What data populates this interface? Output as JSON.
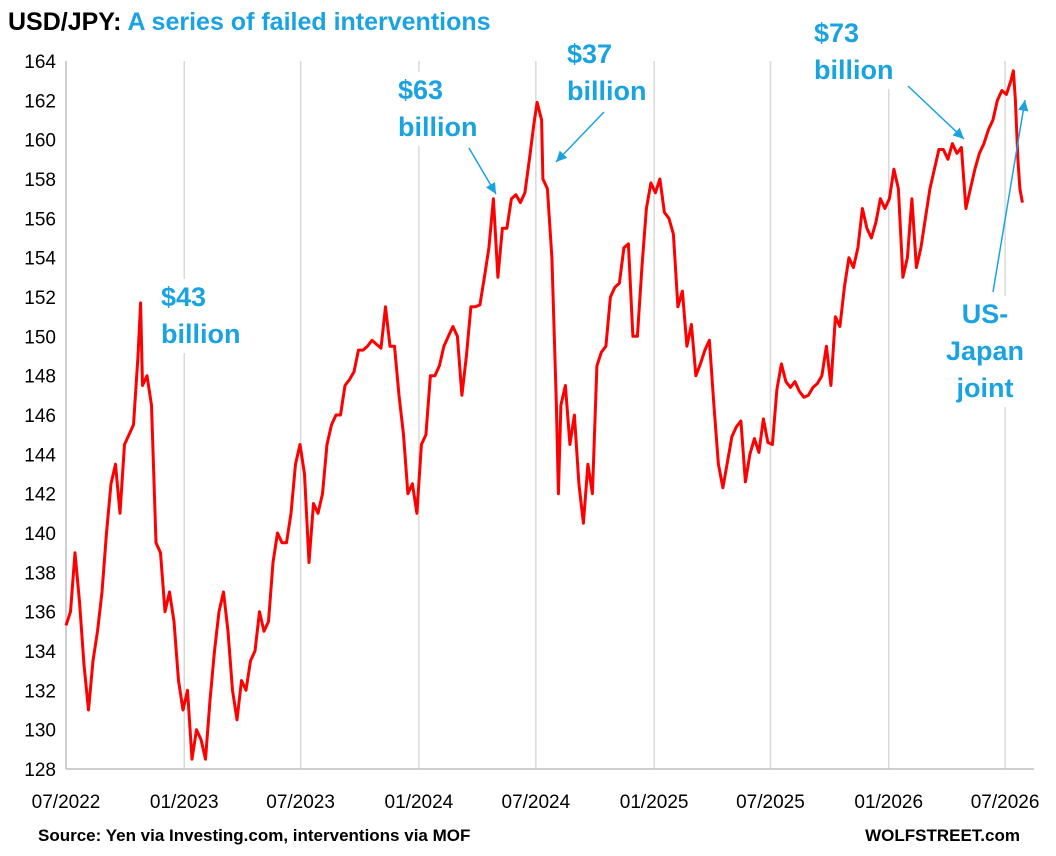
{
  "title": {
    "pair": "USD/JPY:",
    "subtitle": "A series of failed interventions"
  },
  "source": "Source: Yen via Investing.com, interventions via MOF",
  "brand": "WOLFSTREET.com",
  "colors": {
    "line": "#ff0000",
    "annotation": "#1aa3e0",
    "grid": "#d9d9d9"
  },
  "chart_data": {
    "type": "line",
    "ylim": [
      128,
      164
    ],
    "yticks": [
      128,
      130,
      132,
      134,
      136,
      138,
      140,
      142,
      144,
      146,
      148,
      150,
      152,
      154,
      156,
      158,
      160,
      162,
      164
    ],
    "xlim": [
      "2022-07-01",
      "2026-08-15"
    ],
    "xticks": [
      {
        "date": "2022-07-01",
        "label": "07/2022"
      },
      {
        "date": "2023-01-01",
        "label": "01/2023"
      },
      {
        "date": "2023-07-01",
        "label": "07/2023"
      },
      {
        "date": "2024-01-01",
        "label": "01/2024"
      },
      {
        "date": "2024-07-01",
        "label": "07/2024"
      },
      {
        "date": "2025-01-01",
        "label": "01/2025"
      },
      {
        "date": "2025-07-01",
        "label": "07/2025"
      },
      {
        "date": "2026-01-01",
        "label": "01/2026"
      },
      {
        "date": "2026-07-01",
        "label": "07/2026"
      }
    ],
    "grid": "vertical",
    "series": [
      {
        "color": "#ff0000",
        "points": [
          [
            "2022-07-01",
            135.3
          ],
          [
            "2022-07-08",
            136.0
          ],
          [
            "2022-07-15",
            139.0
          ],
          [
            "2022-07-22",
            136.5
          ],
          [
            "2022-07-29",
            133.3
          ],
          [
            "2022-08-05",
            131.0
          ],
          [
            "2022-08-12",
            133.5
          ],
          [
            "2022-08-19",
            135.0
          ],
          [
            "2022-08-26",
            137.0
          ],
          [
            "2022-09-02",
            140.0
          ],
          [
            "2022-09-09",
            142.5
          ],
          [
            "2022-09-16",
            143.5
          ],
          [
            "2022-09-23",
            141.0
          ],
          [
            "2022-09-30",
            144.5
          ],
          [
            "2022-10-07",
            145.0
          ],
          [
            "2022-10-14",
            145.5
          ],
          [
            "2022-10-21",
            149.0
          ],
          [
            "2022-10-25",
            151.7
          ],
          [
            "2022-10-28",
            147.5
          ],
          [
            "2022-11-04",
            148.0
          ],
          [
            "2022-11-11",
            146.5
          ],
          [
            "2022-11-18",
            139.5
          ],
          [
            "2022-11-25",
            139.0
          ],
          [
            "2022-12-02",
            136.0
          ],
          [
            "2022-12-09",
            137.0
          ],
          [
            "2022-12-16",
            135.5
          ],
          [
            "2022-12-23",
            132.5
          ],
          [
            "2022-12-30",
            131.0
          ],
          [
            "2023-01-06",
            132.0
          ],
          [
            "2023-01-13",
            128.5
          ],
          [
            "2023-01-20",
            130.0
          ],
          [
            "2023-01-27",
            129.5
          ],
          [
            "2023-02-03",
            128.5
          ],
          [
            "2023-02-10",
            131.5
          ],
          [
            "2023-02-17",
            134.0
          ],
          [
            "2023-02-24",
            136.0
          ],
          [
            "2023-03-03",
            137.0
          ],
          [
            "2023-03-10",
            135.0
          ],
          [
            "2023-03-17",
            132.0
          ],
          [
            "2023-03-24",
            130.5
          ],
          [
            "2023-03-31",
            132.5
          ],
          [
            "2023-04-07",
            132.0
          ],
          [
            "2023-04-14",
            133.5
          ],
          [
            "2023-04-21",
            134.0
          ],
          [
            "2023-04-28",
            136.0
          ],
          [
            "2023-05-05",
            135.0
          ],
          [
            "2023-05-12",
            135.5
          ],
          [
            "2023-05-19",
            138.5
          ],
          [
            "2023-05-26",
            140.0
          ],
          [
            "2023-06-02",
            139.5
          ],
          [
            "2023-06-09",
            139.5
          ],
          [
            "2023-06-16",
            141.0
          ],
          [
            "2023-06-23",
            143.5
          ],
          [
            "2023-06-30",
            144.5
          ],
          [
            "2023-07-07",
            143.0
          ],
          [
            "2023-07-14",
            138.5
          ],
          [
            "2023-07-21",
            141.5
          ],
          [
            "2023-07-28",
            141.0
          ],
          [
            "2023-08-04",
            142.0
          ],
          [
            "2023-08-11",
            144.5
          ],
          [
            "2023-08-18",
            145.5
          ],
          [
            "2023-08-25",
            146.0
          ],
          [
            "2023-09-01",
            146.0
          ],
          [
            "2023-09-08",
            147.5
          ],
          [
            "2023-09-15",
            147.8
          ],
          [
            "2023-09-22",
            148.2
          ],
          [
            "2023-09-29",
            149.3
          ],
          [
            "2023-10-06",
            149.3
          ],
          [
            "2023-10-13",
            149.5
          ],
          [
            "2023-10-20",
            149.8
          ],
          [
            "2023-10-27",
            149.6
          ],
          [
            "2023-11-03",
            149.4
          ],
          [
            "2023-11-10",
            151.5
          ],
          [
            "2023-11-17",
            149.5
          ],
          [
            "2023-11-24",
            149.5
          ],
          [
            "2023-12-01",
            147.0
          ],
          [
            "2023-12-08",
            145.0
          ],
          [
            "2023-12-15",
            142.0
          ],
          [
            "2023-12-22",
            142.5
          ],
          [
            "2023-12-29",
            141.0
          ],
          [
            "2024-01-05",
            144.5
          ],
          [
            "2024-01-12",
            145.0
          ],
          [
            "2024-01-19",
            148.0
          ],
          [
            "2024-01-26",
            148.0
          ],
          [
            "2024-02-02",
            148.5
          ],
          [
            "2024-02-09",
            149.5
          ],
          [
            "2024-02-16",
            150.0
          ],
          [
            "2024-02-23",
            150.5
          ],
          [
            "2024-03-01",
            150.0
          ],
          [
            "2024-03-08",
            147.0
          ],
          [
            "2024-03-15",
            149.0
          ],
          [
            "2024-03-22",
            151.5
          ],
          [
            "2024-03-29",
            151.5
          ],
          [
            "2024-04-05",
            151.6
          ],
          [
            "2024-04-12",
            153.0
          ],
          [
            "2024-04-19",
            154.5
          ],
          [
            "2024-04-26",
            157.0
          ],
          [
            "2024-05-03",
            153.0
          ],
          [
            "2024-05-10",
            155.5
          ],
          [
            "2024-05-17",
            155.5
          ],
          [
            "2024-05-24",
            157.0
          ],
          [
            "2024-05-31",
            157.2
          ],
          [
            "2024-06-07",
            156.8
          ],
          [
            "2024-06-14",
            157.3
          ],
          [
            "2024-06-21",
            159.0
          ],
          [
            "2024-06-28",
            160.8
          ],
          [
            "2024-07-03",
            161.9
          ],
          [
            "2024-07-10",
            161.0
          ],
          [
            "2024-07-12",
            158.0
          ],
          [
            "2024-07-19",
            157.5
          ],
          [
            "2024-07-26",
            154.0
          ],
          [
            "2024-08-02",
            146.5
          ],
          [
            "2024-08-05",
            142.0
          ],
          [
            "2024-08-09",
            146.5
          ],
          [
            "2024-08-16",
            147.5
          ],
          [
            "2024-08-23",
            144.5
          ],
          [
            "2024-08-30",
            146.0
          ],
          [
            "2024-09-06",
            142.5
          ],
          [
            "2024-09-13",
            140.5
          ],
          [
            "2024-09-20",
            143.5
          ],
          [
            "2024-09-27",
            142.0
          ],
          [
            "2024-10-04",
            148.5
          ],
          [
            "2024-10-11",
            149.2
          ],
          [
            "2024-10-18",
            149.5
          ],
          [
            "2024-10-25",
            152.0
          ],
          [
            "2024-11-01",
            152.5
          ],
          [
            "2024-11-08",
            152.7
          ],
          [
            "2024-11-15",
            154.5
          ],
          [
            "2024-11-22",
            154.7
          ],
          [
            "2024-11-29",
            150.0
          ],
          [
            "2024-12-06",
            150.0
          ],
          [
            "2024-12-13",
            153.5
          ],
          [
            "2024-12-20",
            156.5
          ],
          [
            "2024-12-27",
            157.8
          ],
          [
            "2025-01-03",
            157.3
          ],
          [
            "2025-01-10",
            158.0
          ],
          [
            "2025-01-17",
            156.3
          ],
          [
            "2025-01-24",
            156.0
          ],
          [
            "2025-01-31",
            155.2
          ],
          [
            "2025-02-07",
            151.5
          ],
          [
            "2025-02-14",
            152.3
          ],
          [
            "2025-02-21",
            149.5
          ],
          [
            "2025-02-28",
            150.6
          ],
          [
            "2025-03-07",
            148.0
          ],
          [
            "2025-03-14",
            148.6
          ],
          [
            "2025-03-21",
            149.3
          ],
          [
            "2025-03-28",
            149.8
          ],
          [
            "2025-04-04",
            146.5
          ],
          [
            "2025-04-11",
            143.5
          ],
          [
            "2025-04-18",
            142.3
          ],
          [
            "2025-04-25",
            143.6
          ],
          [
            "2025-05-02",
            144.9
          ],
          [
            "2025-05-09",
            145.4
          ],
          [
            "2025-05-16",
            145.7
          ],
          [
            "2025-05-23",
            142.6
          ],
          [
            "2025-05-30",
            144.0
          ],
          [
            "2025-06-06",
            144.8
          ],
          [
            "2025-06-13",
            144.1
          ],
          [
            "2025-06-20",
            145.8
          ],
          [
            "2025-06-27",
            144.6
          ],
          [
            "2025-07-04",
            144.5
          ],
          [
            "2025-07-11",
            147.3
          ],
          [
            "2025-07-18",
            148.6
          ],
          [
            "2025-07-25",
            147.7
          ],
          [
            "2025-08-01",
            147.4
          ],
          [
            "2025-08-08",
            147.7
          ],
          [
            "2025-08-15",
            147.2
          ],
          [
            "2025-08-22",
            146.9
          ],
          [
            "2025-08-29",
            147.0
          ],
          [
            "2025-09-05",
            147.4
          ],
          [
            "2025-09-12",
            147.6
          ],
          [
            "2025-09-19",
            148.0
          ],
          [
            "2025-09-26",
            149.5
          ],
          [
            "2025-10-03",
            147.5
          ],
          [
            "2025-10-10",
            151.0
          ],
          [
            "2025-10-17",
            150.5
          ],
          [
            "2025-10-24",
            152.5
          ],
          [
            "2025-10-31",
            154.0
          ],
          [
            "2025-11-07",
            153.5
          ],
          [
            "2025-11-14",
            154.5
          ],
          [
            "2025-11-21",
            156.5
          ],
          [
            "2025-11-28",
            155.5
          ],
          [
            "2025-12-05",
            155.0
          ],
          [
            "2025-12-12",
            155.8
          ],
          [
            "2025-12-19",
            157.0
          ],
          [
            "2025-12-26",
            156.5
          ],
          [
            "2026-01-02",
            157.0
          ],
          [
            "2026-01-09",
            158.5
          ],
          [
            "2026-01-16",
            157.5
          ],
          [
            "2026-01-23",
            153.0
          ],
          [
            "2026-01-30",
            154.0
          ],
          [
            "2026-02-06",
            157.0
          ],
          [
            "2026-02-13",
            153.5
          ],
          [
            "2026-02-20",
            154.5
          ],
          [
            "2026-02-27",
            156.0
          ],
          [
            "2026-03-06",
            157.5
          ],
          [
            "2026-03-13",
            158.5
          ],
          [
            "2026-03-20",
            159.5
          ],
          [
            "2026-03-27",
            159.5
          ],
          [
            "2026-04-03",
            159.0
          ],
          [
            "2026-04-10",
            159.8
          ],
          [
            "2026-04-17",
            159.3
          ],
          [
            "2026-04-24",
            159.6
          ],
          [
            "2026-05-01",
            156.5
          ],
          [
            "2026-05-08",
            157.5
          ],
          [
            "2026-05-15",
            158.5
          ],
          [
            "2026-05-22",
            159.3
          ],
          [
            "2026-05-29",
            159.8
          ],
          [
            "2026-06-05",
            160.5
          ],
          [
            "2026-06-12",
            161.0
          ],
          [
            "2026-06-19",
            162.0
          ],
          [
            "2026-06-26",
            162.5
          ],
          [
            "2026-07-03",
            162.3
          ],
          [
            "2026-07-10",
            163.0
          ],
          [
            "2026-07-14",
            163.5
          ],
          [
            "2026-07-17",
            162.0
          ],
          [
            "2026-07-21",
            159.0
          ],
          [
            "2026-07-24",
            157.5
          ],
          [
            "2026-07-28",
            156.8
          ]
        ]
      }
    ],
    "annotations": [
      {
        "text1": "$43",
        "text2": "billion"
      },
      {
        "text1": "$63",
        "text2": "billion"
      },
      {
        "text1": "$37",
        "text2": "billion"
      },
      {
        "text1": "$73",
        "text2": "billion"
      },
      {
        "text1": "US-",
        "text2": "Japan",
        "text3": "joint"
      }
    ]
  }
}
